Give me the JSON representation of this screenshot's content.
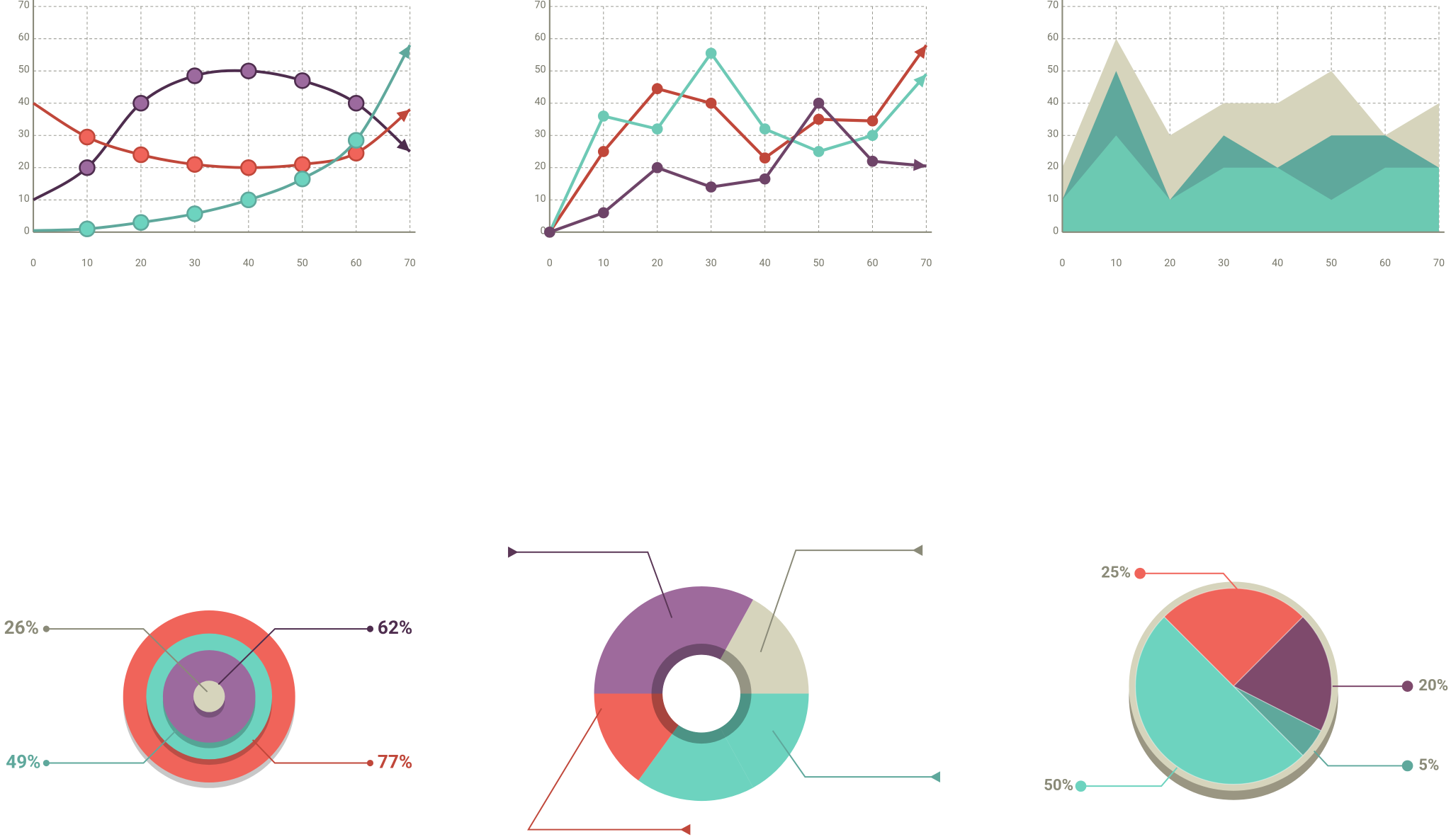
{
  "chart_data": [
    {
      "type": "line",
      "smooth": true,
      "x": [
        0,
        10,
        20,
        30,
        40,
        50,
        60,
        70
      ],
      "series": [
        {
          "color": "#4e2d4e",
          "marker_color": "#9c6a9e",
          "values": [
            10,
            20,
            40,
            48.5,
            50,
            47,
            40,
            25
          ]
        },
        {
          "color": "#c0473a",
          "marker_color": "#f0645a",
          "values": [
            40,
            29.5,
            24,
            21,
            20,
            21,
            24.5,
            38
          ]
        },
        {
          "color": "#5fa89c",
          "marker_color": "#6dd3bf",
          "values": [
            0.5,
            1,
            3,
            5.7,
            10,
            16.5,
            28.5,
            58
          ]
        }
      ],
      "xlim": [
        0,
        70
      ],
      "ylim": [
        0,
        70
      ],
      "xticks": [
        0,
        10,
        20,
        30,
        40,
        50,
        60,
        70
      ],
      "yticks": [
        0,
        10,
        20,
        30,
        40,
        50,
        60,
        70
      ],
      "grid": true
    },
    {
      "type": "line",
      "smooth": false,
      "x": [
        0,
        10,
        20,
        30,
        40,
        50,
        60,
        70
      ],
      "series": [
        {
          "color": "#c0473a",
          "marker_color": "#c0473a",
          "values": [
            0,
            25,
            44.5,
            40,
            23,
            35,
            34.5,
            58
          ]
        },
        {
          "color": "#6dc9b5",
          "marker_color": "#6dc9b5",
          "values": [
            0,
            36,
            32,
            55.5,
            32,
            25,
            30,
            49
          ]
        },
        {
          "color": "#6e4468",
          "marker_color": "#6e4468",
          "values": [
            0,
            6,
            20,
            14,
            16.5,
            40,
            22,
            20.5
          ]
        }
      ],
      "xlim": [
        0,
        70
      ],
      "ylim": [
        0,
        70
      ],
      "xticks": [
        0,
        10,
        20,
        30,
        40,
        50,
        60,
        70
      ],
      "yticks": [
        0,
        10,
        20,
        30,
        40,
        50,
        60,
        70
      ],
      "grid": true
    },
    {
      "type": "area",
      "x": [
        0,
        10,
        20,
        30,
        40,
        50,
        60,
        70
      ],
      "series": [
        {
          "color": "#d6d4bc",
          "values": [
            20,
            60,
            30,
            40,
            40,
            50,
            30,
            40
          ]
        },
        {
          "color": "#5fa89c",
          "values": [
            10,
            50,
            10,
            30,
            20,
            30,
            30,
            20
          ]
        },
        {
          "color": "#6cc9b2",
          "values": [
            10,
            30,
            10,
            20,
            20,
            10,
            20,
            20
          ]
        }
      ],
      "xlim": [
        0,
        70
      ],
      "ylim": [
        0,
        70
      ],
      "xticks": [
        0,
        10,
        20,
        30,
        40,
        50,
        60,
        70
      ],
      "yticks": [
        0,
        10,
        20,
        30,
        40,
        50,
        60,
        70
      ],
      "grid": true
    },
    {
      "type": "rings",
      "values": [
        26,
        62,
        49,
        77
      ],
      "value_labels": [
        "26%",
        "62%",
        "49%",
        "77%"
      ],
      "colors": [
        "#d6d4bc",
        "#9c6a9e",
        "#6dd3bf",
        "#f0645a"
      ],
      "label_colors": [
        "#8a8a78",
        "#4e2d4e",
        "#5fa89c",
        "#c0473a"
      ]
    },
    {
      "type": "donut",
      "values": [
        33,
        17,
        17,
        18,
        15
      ],
      "colors": [
        "#9e6a9c",
        "#d6d4bc",
        "#6dd3bf",
        "#6dd3bf",
        "#f0645a"
      ]
    },
    {
      "type": "pie",
      "values": [
        25,
        20,
        5,
        50
      ],
      "value_labels": [
        "25%",
        "20%",
        "5%",
        "50%"
      ],
      "colors": [
        "#f0645a",
        "#7e4a6c",
        "#5fa89c",
        "#6dd3bf"
      ]
    }
  ]
}
